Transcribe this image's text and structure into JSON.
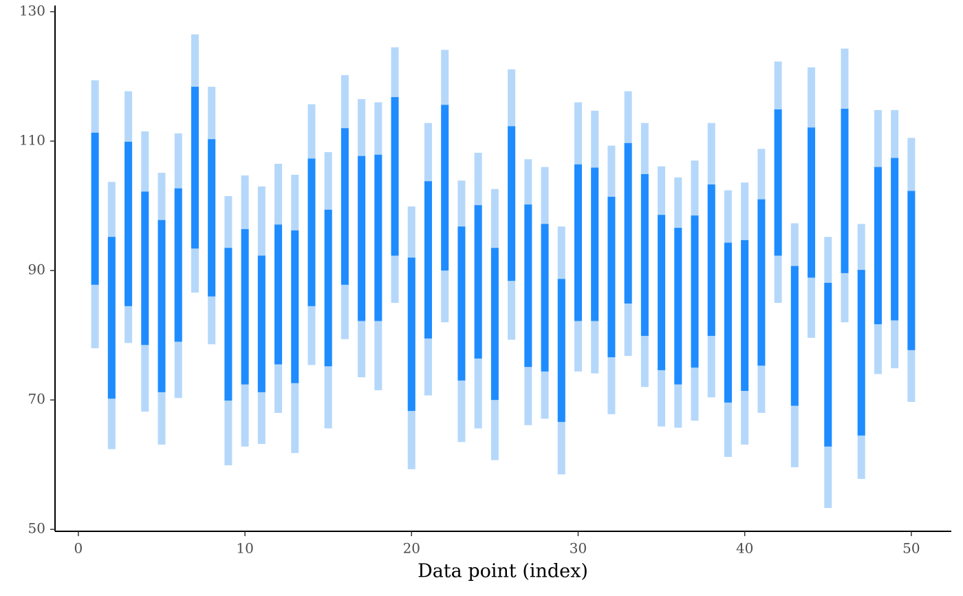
{
  "chart_data": {
    "type": "interval",
    "x_label": "Data point (index)",
    "x": [
      1,
      2,
      3,
      4,
      5,
      6,
      7,
      8,
      9,
      10,
      11,
      12,
      13,
      14,
      15,
      16,
      17,
      18,
      19,
      20,
      21,
      22,
      23,
      24,
      25,
      26,
      27,
      28,
      29,
      30,
      31,
      32,
      33,
      34,
      35,
      36,
      37,
      38,
      39,
      40,
      41,
      42,
      43,
      44,
      45,
      46,
      47,
      48,
      49,
      50
    ],
    "outer": {
      "color": "#b5d8fa",
      "upper": [
        119.4,
        103.7,
        117.7,
        111.5,
        105.1,
        111.2,
        126.5,
        118.4,
        101.5,
        104.7,
        103.0,
        106.5,
        104.8,
        115.7,
        108.3,
        120.2,
        116.5,
        116.0,
        124.5,
        99.9,
        112.8,
        124.1,
        103.9,
        108.2,
        102.6,
        121.1,
        107.2,
        106.0,
        96.8,
        116.0,
        114.7,
        109.3,
        117.7,
        112.8,
        106.1,
        104.4,
        107.0,
        112.8,
        102.4,
        103.6,
        108.8,
        122.3,
        97.3,
        121.4,
        95.2,
        124.3,
        97.2,
        114.8,
        114.8,
        110.5
      ],
      "lower": [
        78.0,
        62.4,
        78.8,
        68.2,
        63.1,
        70.3,
        86.6,
        78.6,
        59.9,
        62.8,
        63.2,
        68.0,
        61.8,
        75.4,
        65.6,
        79.4,
        73.5,
        71.5,
        85.0,
        59.3,
        70.7,
        82.0,
        63.5,
        65.6,
        60.7,
        79.3,
        66.1,
        67.1,
        58.5,
        74.4,
        74.1,
        67.8,
        76.8,
        72.0,
        65.9,
        65.7,
        66.8,
        70.4,
        61.2,
        63.1,
        68.0,
        85.0,
        59.6,
        79.6,
        53.3,
        82.0,
        57.8,
        74.0,
        74.9,
        69.7
      ]
    },
    "inner": {
      "color": "#1e8cff",
      "upper": [
        111.3,
        95.2,
        109.9,
        102.2,
        97.8,
        102.7,
        118.4,
        110.3,
        93.5,
        96.4,
        92.3,
        97.1,
        96.2,
        107.3,
        99.4,
        112.0,
        107.7,
        107.9,
        116.8,
        92.0,
        103.8,
        115.6,
        96.8,
        100.1,
        93.5,
        112.3,
        100.2,
        97.2,
        88.7,
        106.4,
        105.9,
        101.4,
        109.7,
        104.9,
        98.6,
        96.6,
        98.5,
        103.3,
        94.3,
        94.7,
        101.0,
        114.9,
        90.7,
        112.1,
        88.1,
        115.0,
        90.1,
        106.0,
        107.4,
        102.3
      ],
      "lower": [
        87.8,
        70.2,
        84.5,
        78.5,
        71.2,
        79.0,
        93.4,
        86.0,
        69.9,
        72.4,
        71.2,
        75.5,
        72.6,
        84.5,
        75.2,
        87.8,
        82.2,
        82.2,
        92.3,
        68.3,
        79.5,
        90.0,
        73.0,
        76.4,
        70.0,
        88.4,
        75.1,
        74.4,
        66.6,
        82.2,
        82.2,
        76.6,
        84.9,
        79.9,
        74.6,
        72.4,
        75.0,
        79.9,
        69.6,
        71.4,
        75.3,
        92.3,
        69.1,
        88.9,
        62.8,
        89.6,
        64.5,
        81.7,
        82.3,
        77.7
      ]
    },
    "xlim": [
      -1.4,
      52.4
    ],
    "ylim": [
      49.7,
      130
    ],
    "xticks": [
      0,
      10,
      20,
      30,
      40,
      50
    ],
    "yticks": [
      50,
      70,
      90,
      110,
      130
    ]
  }
}
